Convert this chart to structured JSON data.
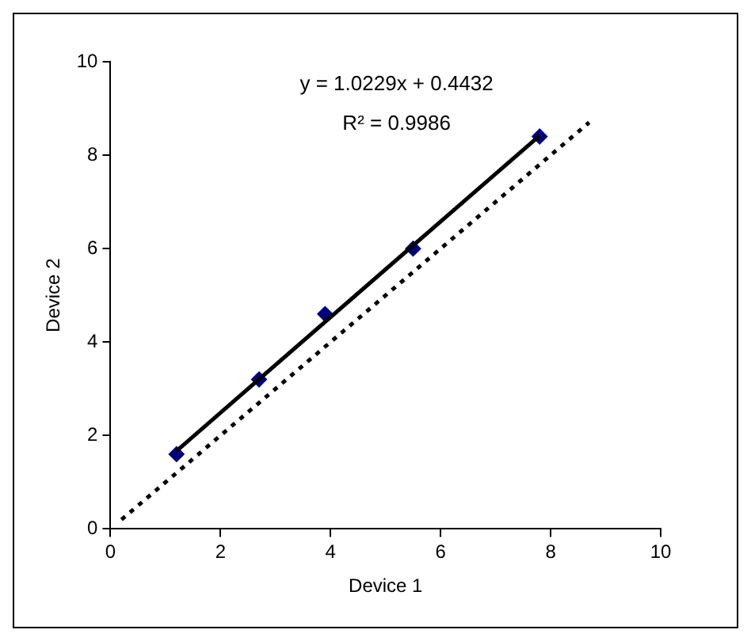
{
  "chart_data": {
    "type": "scatter",
    "xlabel": "Device 1",
    "ylabel": "Device 2",
    "annotations": [
      "y = 1.0229x + 0.4432",
      "R² = 0.9986"
    ],
    "xlim": [
      0,
      10
    ],
    "xticks": [
      0,
      2,
      4,
      6,
      8,
      10
    ],
    "ylim": [
      0,
      10
    ],
    "yticks": [
      0,
      2,
      4,
      6,
      8,
      10
    ],
    "grid": false,
    "legend": false,
    "series": [
      {
        "type": "line",
        "x": [
          0.2,
          8.7
        ],
        "values": [
          0.2,
          8.7
        ],
        "color": "#000000",
        "line_style": "dotted",
        "marker": "none"
      },
      {
        "type": "line",
        "x": [
          1.2,
          7.8
        ],
        "values": [
          1.67,
          8.42
        ],
        "color": "#000000",
        "line_style": "solid",
        "marker": "none"
      },
      {
        "type": "scatter",
        "x": [
          1.2,
          2.7,
          3.9,
          5.5,
          7.8
        ],
        "values": [
          1.6,
          3.2,
          4.6,
          6.0,
          8.4
        ],
        "color": "#000080",
        "marker": "diamond"
      }
    ]
  }
}
